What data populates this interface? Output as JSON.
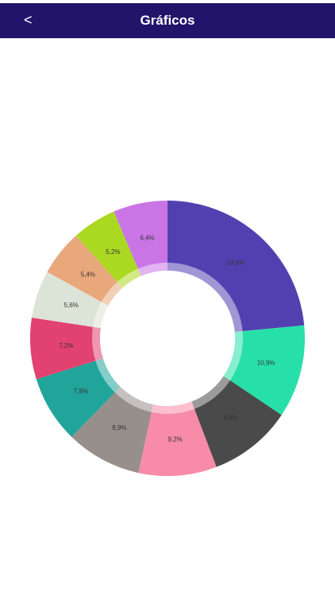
{
  "header": {
    "back": "<",
    "title": "Gráficos"
  },
  "chart_data": {
    "type": "donut",
    "values": [
      23.5,
      10.9,
      9.8,
      9.2,
      8.9,
      7.9,
      7.2,
      5.6,
      5.4,
      5.2,
      6.4
    ],
    "value_labels": [
      "23,5%",
      "10,9%",
      "9,8%",
      "9,2%",
      "8,9%",
      "7,9%",
      "7,2%",
      "5,6%",
      "5,4%",
      "5,2%",
      "6,4%"
    ],
    "colors": [
      "#5340b0",
      "#27e0a9",
      "#4a4a4a",
      "#f78ba8",
      "#978f8c",
      "#21a59b",
      "#e2426f",
      "#dce3d7",
      "#e8a87c",
      "#abd922",
      "#c975e5"
    ]
  }
}
